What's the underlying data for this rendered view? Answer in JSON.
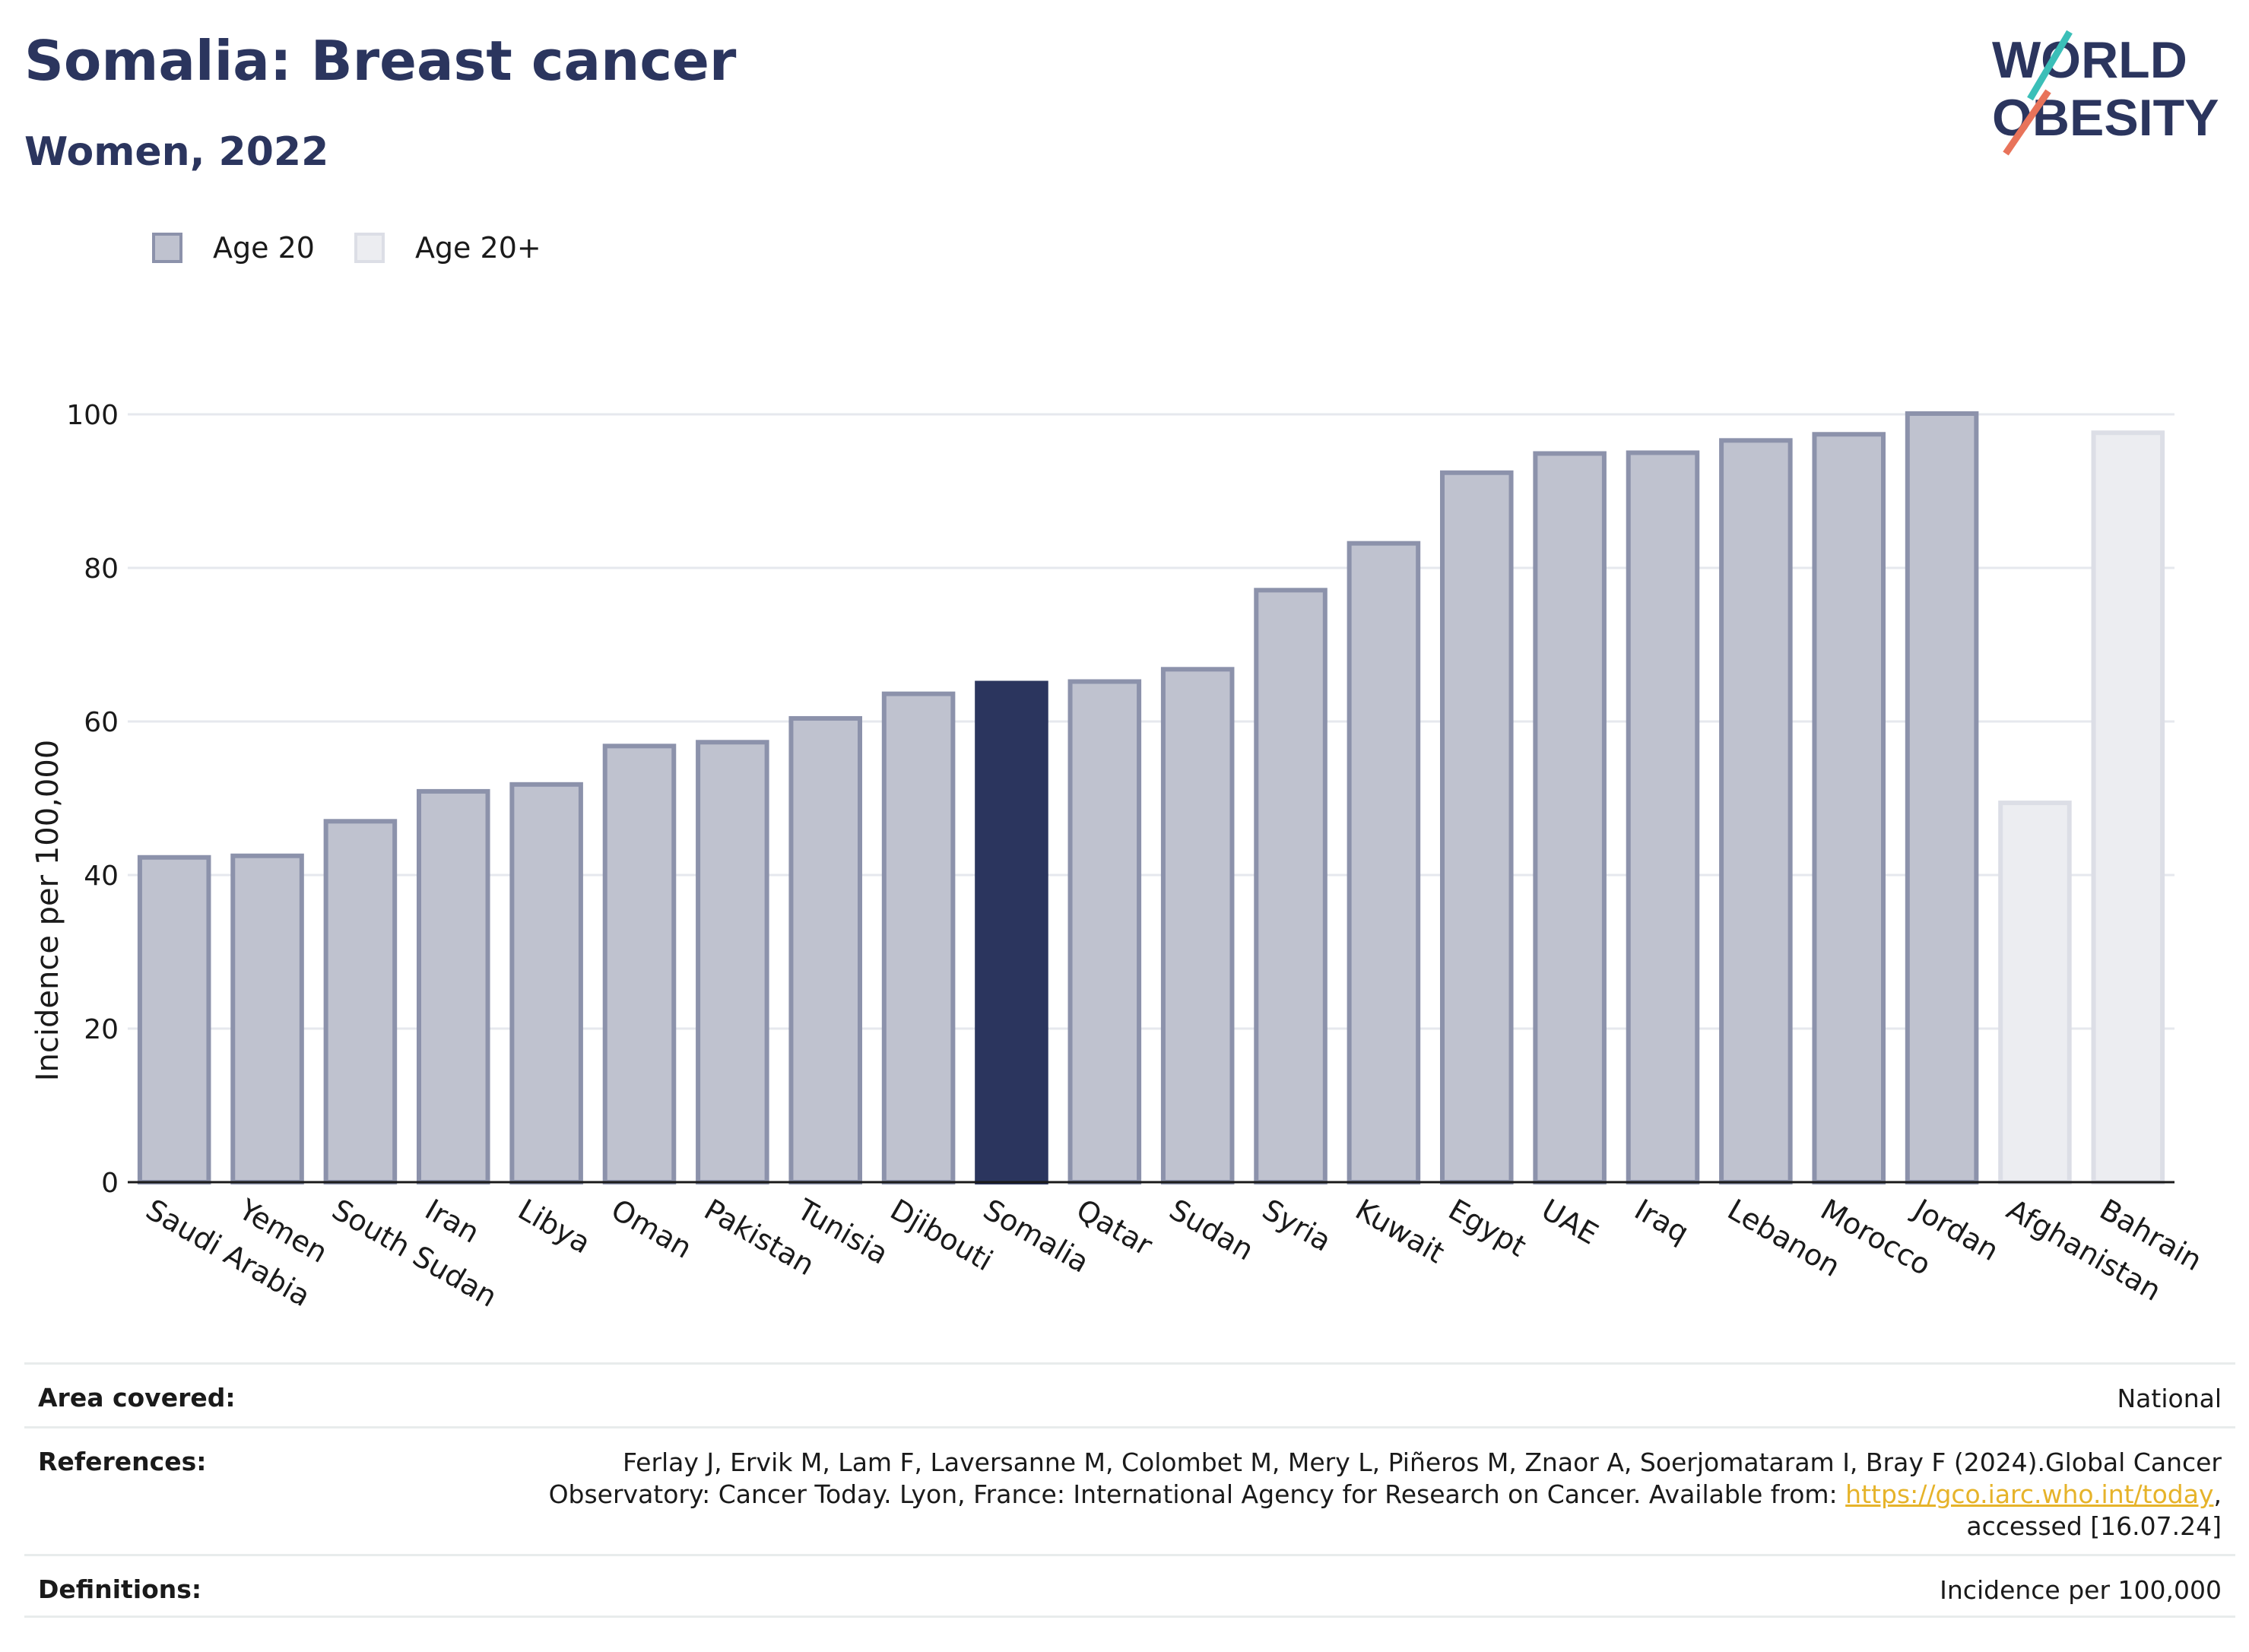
{
  "header": {
    "title": "Somalia: Breast cancer",
    "subtitle": "Women, 2022",
    "logo_line1": "WORLD",
    "logo_line2": "OBESITY"
  },
  "legend": [
    {
      "label": "Age 20",
      "color": "#bfc2cf"
    },
    {
      "label": "Age 20+",
      "color": "#ecedf1"
    }
  ],
  "chart_data": {
    "type": "bar",
    "ylabel": "Incidence per 100,000",
    "ylim": [
      0,
      110
    ],
    "yticks": [
      0,
      20,
      40,
      60,
      80,
      100
    ],
    "grid": true,
    "legend_position": "top-left",
    "colors": {
      "age20": "#bfc2cf",
      "age20_border": "#8c92ab",
      "age20plus": "#ecedf1",
      "age20plus_border": "#dcdee6",
      "highlight": "#2b355e"
    },
    "categories": [
      "Saudi Arabia",
      "Yemen",
      "South Sudan",
      "Iran",
      "Libya",
      "Oman",
      "Pakistan",
      "Tunisia",
      "Djibouti",
      "Somalia",
      "Qatar",
      "Sudan",
      "Syria",
      "Kuwait",
      "Egypt",
      "UAE",
      "Iraq",
      "Lebanon",
      "Morocco",
      "Jordan",
      "Afghanistan",
      "Bahrain"
    ],
    "values": [
      42.3,
      42.5,
      47.0,
      50.9,
      51.8,
      56.8,
      57.3,
      60.4,
      63.6,
      65.0,
      65.2,
      66.8,
      77.1,
      83.2,
      92.4,
      94.9,
      95.0,
      96.6,
      97.4,
      100.1,
      49.4,
      97.6
    ],
    "series_group": [
      "Age 20",
      "Age 20",
      "Age 20",
      "Age 20",
      "Age 20",
      "Age 20",
      "Age 20",
      "Age 20",
      "Age 20",
      "Age 20",
      "Age 20",
      "Age 20",
      "Age 20",
      "Age 20",
      "Age 20",
      "Age 20",
      "Age 20",
      "Age 20",
      "Age 20",
      "Age 20",
      "Age 20+",
      "Age 20+"
    ],
    "highlight": "Somalia"
  },
  "info_table": [
    {
      "label": "Area covered:",
      "value_lines": [
        "National"
      ]
    },
    {
      "label": "References:",
      "value_lines": [
        "Ferlay J, Ervik M, Lam F, Laversanne M, Colombet M, Mery L, Piñeros M, Znaor A, Soerjomataram I, Bray F (2024).Global Cancer",
        "Observatory: Cancer Today. Lyon, France: International Agency for Research on Cancer. Available from: ",
        "accessed [16.07.24]"
      ],
      "link_text": "https://gco.iarc.who.int/today"
    },
    {
      "label": "Definitions:",
      "value_lines": [
        "Incidence per 100,000"
      ]
    }
  ]
}
